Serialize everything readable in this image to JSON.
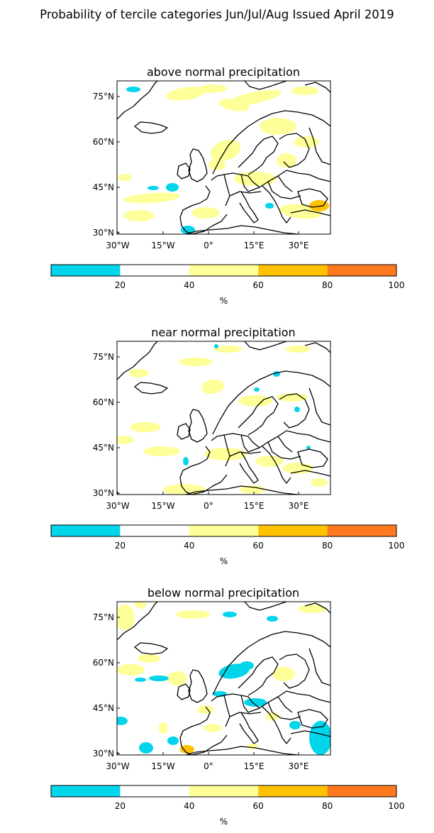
{
  "figure": {
    "title": "Probability of tercile categories Jun/Jul/Aug Issued April 2019"
  },
  "colors": {
    "low": "#00d5eb",
    "mid": "#ffffff",
    "pale_yellow": "#ffff99",
    "gold": "#ffc200",
    "orange": "#ff7a1f",
    "land": "#ffffff",
    "coast": "#000000"
  },
  "colorbar": {
    "unit": "%",
    "tick_labels": [
      "20",
      "40",
      "60",
      "80",
      "100"
    ]
  },
  "map_axes": {
    "lat_labels": [
      "75°N",
      "60°N",
      "45°N",
      "30°N"
    ],
    "lon_labels": [
      "30°W",
      "15°W",
      "0°",
      "15°E",
      "30°E"
    ],
    "lat_range": [
      29,
      80
    ],
    "lon_range": [
      -30,
      40
    ]
  },
  "panels": [
    {
      "title": "above normal precipitation"
    },
    {
      "title": "near normal precipitation"
    },
    {
      "title": "below normal precipitation"
    }
  ]
}
